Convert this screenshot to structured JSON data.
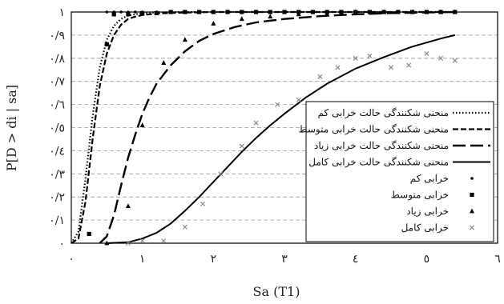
{
  "chart_data": {
    "type": "line",
    "xlabel": "Sa (T1)",
    "ylabel": "P[D > di | sa]",
    "xlim": [
      0,
      6
    ],
    "ylim": [
      0,
      1
    ],
    "x_ticks": [
      {
        "value": 0,
        "label": "٠"
      },
      {
        "value": 1,
        "label": "١"
      },
      {
        "value": 2,
        "label": "٢"
      },
      {
        "value": 3,
        "label": "٣"
      },
      {
        "value": 4,
        "label": "٤"
      },
      {
        "value": 5,
        "label": "٥"
      },
      {
        "value": 6,
        "label": "٦"
      }
    ],
    "y_ticks": [
      {
        "value": 0,
        "label": "٠"
      },
      {
        "value": 0.1,
        "label": "٠/١"
      },
      {
        "value": 0.2,
        "label": "٠/٢"
      },
      {
        "value": 0.3,
        "label": "٠/٣"
      },
      {
        "value": 0.4,
        "label": "٠/٤"
      },
      {
        "value": 0.5,
        "label": "٠/٥"
      },
      {
        "value": 0.6,
        "label": "٠/٦"
      },
      {
        "value": 0.7,
        "label": "٠/٧"
      },
      {
        "value": 0.8,
        "label": "٠/٨"
      },
      {
        "value": 0.9,
        "label": "٠/٩"
      },
      {
        "value": 1,
        "label": "١"
      }
    ],
    "grid": "horizontal-dashed",
    "legend_position": "center-right",
    "curves": [
      {
        "name": "منحنی شکنندگی حالت خرابی کم",
        "style": "dotted",
        "x": [
          0,
          0.1,
          0.2,
          0.3,
          0.4,
          0.5,
          0.6,
          0.7,
          0.8,
          0.9,
          1.0,
          1.2,
          1.5,
          2,
          3,
          4,
          5,
          5.4
        ],
        "y": [
          0,
          0.05,
          0.28,
          0.55,
          0.76,
          0.88,
          0.94,
          0.97,
          0.985,
          0.99,
          0.995,
          0.998,
          1,
          1,
          1,
          1,
          1,
          1
        ]
      },
      {
        "name": "منحنی شکنندگی حالت خرابی متوسط",
        "style": "dashed",
        "x": [
          0,
          0.1,
          0.2,
          0.3,
          0.4,
          0.5,
          0.6,
          0.7,
          0.8,
          0.9,
          1.0,
          1.2,
          1.5,
          2,
          3,
          4,
          5,
          5.4
        ],
        "y": [
          0,
          0.02,
          0.18,
          0.45,
          0.68,
          0.82,
          0.9,
          0.945,
          0.97,
          0.98,
          0.987,
          0.993,
          0.997,
          1,
          1,
          1,
          1,
          1
        ]
      },
      {
        "name": "منحنی شکنندگی حالت خرابی زیاد",
        "style": "long-dashed",
        "x": [
          0.4,
          0.5,
          0.6,
          0.7,
          0.8,
          0.9,
          1.0,
          1.1,
          1.2,
          1.4,
          1.6,
          1.8,
          2.0,
          2.3,
          2.6,
          3,
          3.5,
          4,
          4.5,
          5,
          5.4
        ],
        "y": [
          0,
          0.03,
          0.12,
          0.25,
          0.37,
          0.47,
          0.56,
          0.63,
          0.69,
          0.77,
          0.83,
          0.875,
          0.905,
          0.935,
          0.955,
          0.97,
          0.982,
          0.99,
          0.995,
          0.998,
          1
        ]
      },
      {
        "name": "منحنی شکنندگی حالت خرابی کامل",
        "style": "solid",
        "x": [
          0.5,
          0.8,
          1.0,
          1.2,
          1.4,
          1.6,
          1.8,
          2.0,
          2.2,
          2.4,
          2.6,
          2.8,
          3.0,
          3.3,
          3.6,
          4.0,
          4.4,
          4.8,
          5.2,
          5.4
        ],
        "y": [
          0,
          0.004,
          0.02,
          0.045,
          0.085,
          0.14,
          0.2,
          0.265,
          0.33,
          0.395,
          0.455,
          0.51,
          0.56,
          0.63,
          0.69,
          0.755,
          0.805,
          0.85,
          0.885,
          0.9
        ]
      }
    ],
    "points": [
      {
        "name": "خرابی کم",
        "marker": "dot",
        "x": [
          0.5,
          0.6,
          0.7,
          0.8,
          0.9,
          1.0,
          1.2,
          1.4,
          1.6,
          1.8,
          2.0,
          2.2,
          2.4,
          2.6,
          2.8,
          3.0,
          3.2,
          3.4,
          3.6,
          3.8,
          4.0,
          4.2,
          4.4,
          4.6,
          4.8,
          5.0,
          5.2,
          5.4
        ],
        "y": [
          1,
          1,
          1,
          1,
          1,
          1,
          1,
          1,
          1,
          1,
          1,
          1,
          1,
          1,
          1,
          1,
          1,
          1,
          1,
          1,
          1,
          1,
          1,
          1,
          1,
          1,
          1,
          1
        ]
      },
      {
        "name": "خرابی متوسط",
        "marker": "square",
        "x": [
          0.25,
          0.5,
          0.6,
          0.8,
          1.0,
          1.2,
          1.4,
          1.6,
          1.8,
          2.0,
          2.2,
          2.4,
          2.6,
          2.8,
          3.0,
          3.2,
          3.4,
          3.6,
          3.8,
          4.0,
          4.2,
          4.4,
          4.6,
          4.8,
          5.0,
          5.2,
          5.4
        ],
        "y": [
          0.04,
          0.86,
          0.99,
          0.99,
          0.995,
          0.995,
          1,
          1,
          1,
          1,
          1,
          1,
          1,
          1,
          1,
          1,
          1,
          1,
          1,
          1,
          1,
          1,
          1,
          1,
          1,
          1,
          1
        ]
      },
      {
        "name": "خرابی زیاد",
        "marker": "triangle",
        "x": [
          0.5,
          0.8,
          1.0,
          1.3,
          1.6,
          2.0,
          2.4,
          2.8,
          3.2,
          3.6,
          4.0,
          4.4,
          4.8,
          5.2,
          5.4
        ],
        "y": [
          0,
          0.16,
          0.51,
          0.78,
          0.88,
          0.95,
          0.97,
          0.98,
          0.99,
          0.99,
          1,
          1,
          1,
          1,
          1
        ]
      },
      {
        "name": "خرابی کامل",
        "marker": "x",
        "x": [
          0.8,
          1.0,
          1.3,
          1.6,
          1.85,
          2.1,
          2.4,
          2.6,
          2.9,
          3.2,
          3.5,
          3.75,
          4.0,
          4.2,
          4.5,
          4.75,
          5.0,
          5.2,
          5.4
        ],
        "y": [
          0,
          0.01,
          0.01,
          0.07,
          0.17,
          0.3,
          0.42,
          0.52,
          0.6,
          0.62,
          0.72,
          0.76,
          0.8,
          0.81,
          0.76,
          0.77,
          0.82,
          0.8,
          0.79
        ]
      }
    ]
  }
}
